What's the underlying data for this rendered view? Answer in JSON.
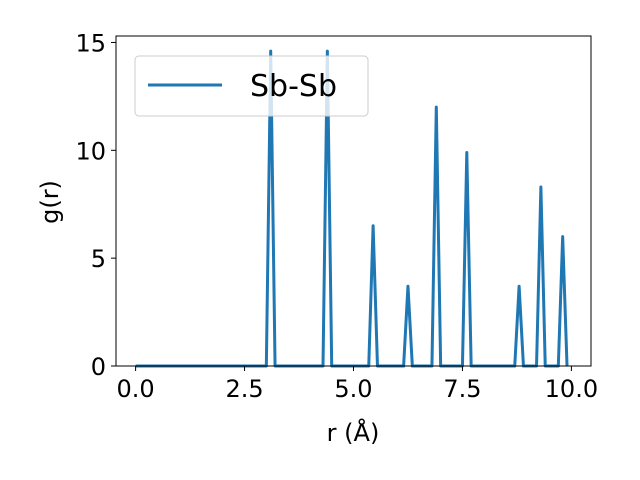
{
  "chart_data": {
    "type": "line",
    "title": "",
    "xlabel": "r (Å)",
    "ylabel": "g(r)",
    "xlim": [
      -0.45,
      10.45
    ],
    "ylim": [
      0,
      15.3
    ],
    "xticks": [
      0.0,
      2.5,
      5.0,
      7.5,
      10.0
    ],
    "xtick_labels": [
      "0.0",
      "2.5",
      "5.0",
      "7.5",
      "10.0"
    ],
    "yticks": [
      0,
      5,
      10,
      15
    ],
    "ytick_labels": [
      "0",
      "5",
      "10",
      "15"
    ],
    "grid": false,
    "legend_position": "top-left",
    "series": [
      {
        "name": "Sb-Sb",
        "color": "#1f77b4",
        "x": [
          0.0,
          3.0,
          3.1,
          3.2,
          4.3,
          4.4,
          4.5,
          5.35,
          5.45,
          5.55,
          6.15,
          6.25,
          6.35,
          6.8,
          6.9,
          7.0,
          7.5,
          7.6,
          7.7,
          8.7,
          8.8,
          8.9,
          9.2,
          9.3,
          9.4,
          9.7,
          9.8,
          9.9
        ],
        "y": [
          0,
          0,
          14.6,
          0,
          0,
          14.6,
          0,
          0,
          6.5,
          0,
          0,
          3.7,
          0,
          0,
          12.0,
          0,
          0,
          9.9,
          0,
          0,
          3.7,
          0,
          0,
          8.3,
          0,
          0,
          6.0,
          0
        ]
      }
    ]
  }
}
